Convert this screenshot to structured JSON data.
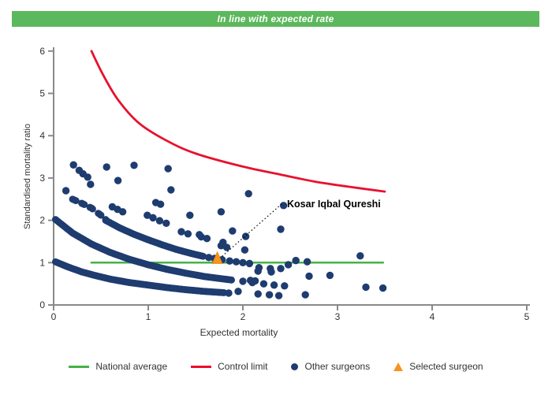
{
  "header": {
    "title": "In line with expected rate",
    "bg_color": "#5cb85c",
    "text_color": "#ffffff"
  },
  "chart_data": {
    "type": "scatter",
    "title": "In line with expected rate",
    "xlabel": "Expected mortality",
    "ylabel": "Standardised mortality ratio",
    "xlim": [
      0,
      5
    ],
    "ylim": [
      0,
      6
    ],
    "x_ticks": [
      0,
      1,
      2,
      3,
      4,
      5
    ],
    "y_ticks": [
      0,
      1,
      2,
      3,
      4,
      5,
      6
    ],
    "grid": false,
    "legend_position": "bottom",
    "national_average": {
      "label": "National average",
      "y": 1.0,
      "x_start": 0.39,
      "x_end": 3.49,
      "color": "#47b247"
    },
    "control_limit": {
      "label": "Control limit",
      "color": "#e8112d",
      "points": [
        [
          0.4,
          6.0
        ],
        [
          0.52,
          5.45
        ],
        [
          0.68,
          4.85
        ],
        [
          0.9,
          4.3
        ],
        [
          1.18,
          3.9
        ],
        [
          1.5,
          3.58
        ],
        [
          2.0,
          3.27
        ],
        [
          2.4,
          3.08
        ],
        [
          2.75,
          2.92
        ],
        [
          3.1,
          2.8
        ],
        [
          3.5,
          2.68
        ]
      ]
    },
    "selected_surgeon": {
      "label": "Selected surgeon",
      "name": "Kosar Iqbal Qureshi",
      "point": [
        1.73,
        1.0
      ],
      "color": "#f7941d",
      "annotation_anchor": [
        2.45,
        2.42
      ]
    },
    "other_surgeons": {
      "label": "Other surgeons",
      "color": "#1e3c6f",
      "bands": [
        {
          "mode": "dense",
          "step": 0.012,
          "points": [
            [
              0.02,
              1.02
            ],
            [
              0.15,
              0.9
            ],
            [
              0.3,
              0.78
            ],
            [
              0.45,
              0.69
            ],
            [
              0.6,
              0.61
            ],
            [
              0.8,
              0.53
            ],
            [
              1.0,
              0.47
            ],
            [
              1.2,
              0.41
            ],
            [
              1.4,
              0.36
            ],
            [
              1.6,
              0.32
            ],
            [
              1.8,
              0.29
            ]
          ]
        },
        {
          "mode": "dense",
          "step": 0.012,
          "points": [
            [
              0.02,
              2.02
            ],
            [
              0.2,
              1.7
            ],
            [
              0.4,
              1.44
            ],
            [
              0.6,
              1.24
            ],
            [
              0.8,
              1.08
            ],
            [
              1.0,
              0.95
            ],
            [
              1.2,
              0.84
            ],
            [
              1.4,
              0.75
            ],
            [
              1.6,
              0.67
            ],
            [
              1.88,
              0.59
            ]
          ]
        },
        {
          "mode": "dash",
          "step": 0.012,
          "points": [
            [
              0.2,
              2.5
            ],
            [
              0.3,
              2.4
            ],
            [
              0.4,
              2.29
            ],
            [
              0.5,
              2.12
            ],
            [
              0.55,
              2.02
            ]
          ]
        },
        {
          "mode": "dense",
          "step": 0.012,
          "points": [
            [
              0.55,
              2.0
            ],
            [
              0.7,
              1.82
            ],
            [
              0.85,
              1.67
            ],
            [
              1.0,
              1.54
            ],
            [
              1.15,
              1.42
            ],
            [
              1.3,
              1.31
            ],
            [
              1.45,
              1.22
            ],
            [
              1.58,
              1.15
            ]
          ]
        }
      ],
      "points": [
        [
          1.64,
          1.12
        ],
        [
          1.7,
          1.1
        ],
        [
          1.78,
          1.07
        ],
        [
          1.86,
          1.04
        ],
        [
          1.93,
          1.02
        ],
        [
          2.0,
          1.0
        ],
        [
          2.07,
          0.98
        ],
        [
          2.17,
          0.88
        ],
        [
          2.29,
          0.86
        ],
        [
          2.4,
          0.86
        ],
        [
          2.48,
          0.95
        ],
        [
          2.0,
          0.56
        ],
        [
          2.1,
          0.53
        ],
        [
          2.22,
          0.5
        ],
        [
          2.33,
          0.47
        ],
        [
          2.44,
          0.45
        ],
        [
          0.21,
          3.31
        ],
        [
          0.56,
          3.26
        ],
        [
          0.85,
          3.3
        ],
        [
          1.21,
          3.22
        ],
        [
          0.27,
          3.18
        ],
        [
          0.31,
          3.1
        ],
        [
          0.36,
          3.02
        ],
        [
          0.39,
          2.85
        ],
        [
          0.13,
          2.7
        ],
        [
          0.68,
          2.94
        ],
        [
          1.24,
          2.72
        ],
        [
          0.62,
          2.32
        ],
        [
          0.675,
          2.26
        ],
        [
          0.73,
          2.2
        ],
        [
          0.99,
          2.12
        ],
        [
          1.05,
          2.06
        ],
        [
          1.12,
          1.99
        ],
        [
          1.19,
          1.93
        ],
        [
          1.35,
          1.73
        ],
        [
          1.42,
          1.68
        ],
        [
          1.56,
          1.61
        ],
        [
          1.62,
          1.57
        ],
        [
          1.79,
          1.48
        ],
        [
          1.08,
          2.42
        ],
        [
          1.13,
          2.38
        ],
        [
          1.44,
          2.12
        ],
        [
          1.77,
          2.2
        ],
        [
          2.06,
          2.63
        ],
        [
          2.43,
          2.35
        ],
        [
          1.54,
          1.66
        ],
        [
          1.89,
          1.75
        ],
        [
          2.4,
          1.79
        ],
        [
          2.03,
          1.62
        ],
        [
          3.24,
          1.16
        ],
        [
          1.77,
          1.4
        ],
        [
          1.83,
          1.36
        ],
        [
          2.02,
          1.3
        ],
        [
          2.56,
          1.05
        ],
        [
          2.68,
          1.02
        ],
        [
          2.16,
          0.8
        ],
        [
          2.3,
          0.78
        ],
        [
          2.7,
          0.68
        ],
        [
          2.92,
          0.7
        ],
        [
          2.08,
          0.58
        ],
        [
          2.13,
          0.57
        ],
        [
          3.3,
          0.42
        ],
        [
          3.48,
          0.4
        ],
        [
          1.85,
          0.28
        ],
        [
          1.95,
          0.32
        ],
        [
          2.16,
          0.26
        ],
        [
          2.28,
          0.24
        ],
        [
          2.38,
          0.22
        ],
        [
          2.66,
          0.24
        ]
      ]
    },
    "annotation": {
      "text": "Kosar Iqbal Qureshi",
      "color": "#000000"
    },
    "axis_color": "#8a8a8a",
    "tick_text_color": "#333333"
  },
  "legend": {
    "items": [
      {
        "label": "National average",
        "marker": "line",
        "color": "#47b247"
      },
      {
        "label": "Control limit",
        "marker": "line",
        "color": "#e8112d"
      },
      {
        "label": "Other surgeons",
        "marker": "dot",
        "color": "#1e3c6f"
      },
      {
        "label": "Selected surgeon",
        "marker": "triangle",
        "color": "#f7941d"
      }
    ]
  }
}
